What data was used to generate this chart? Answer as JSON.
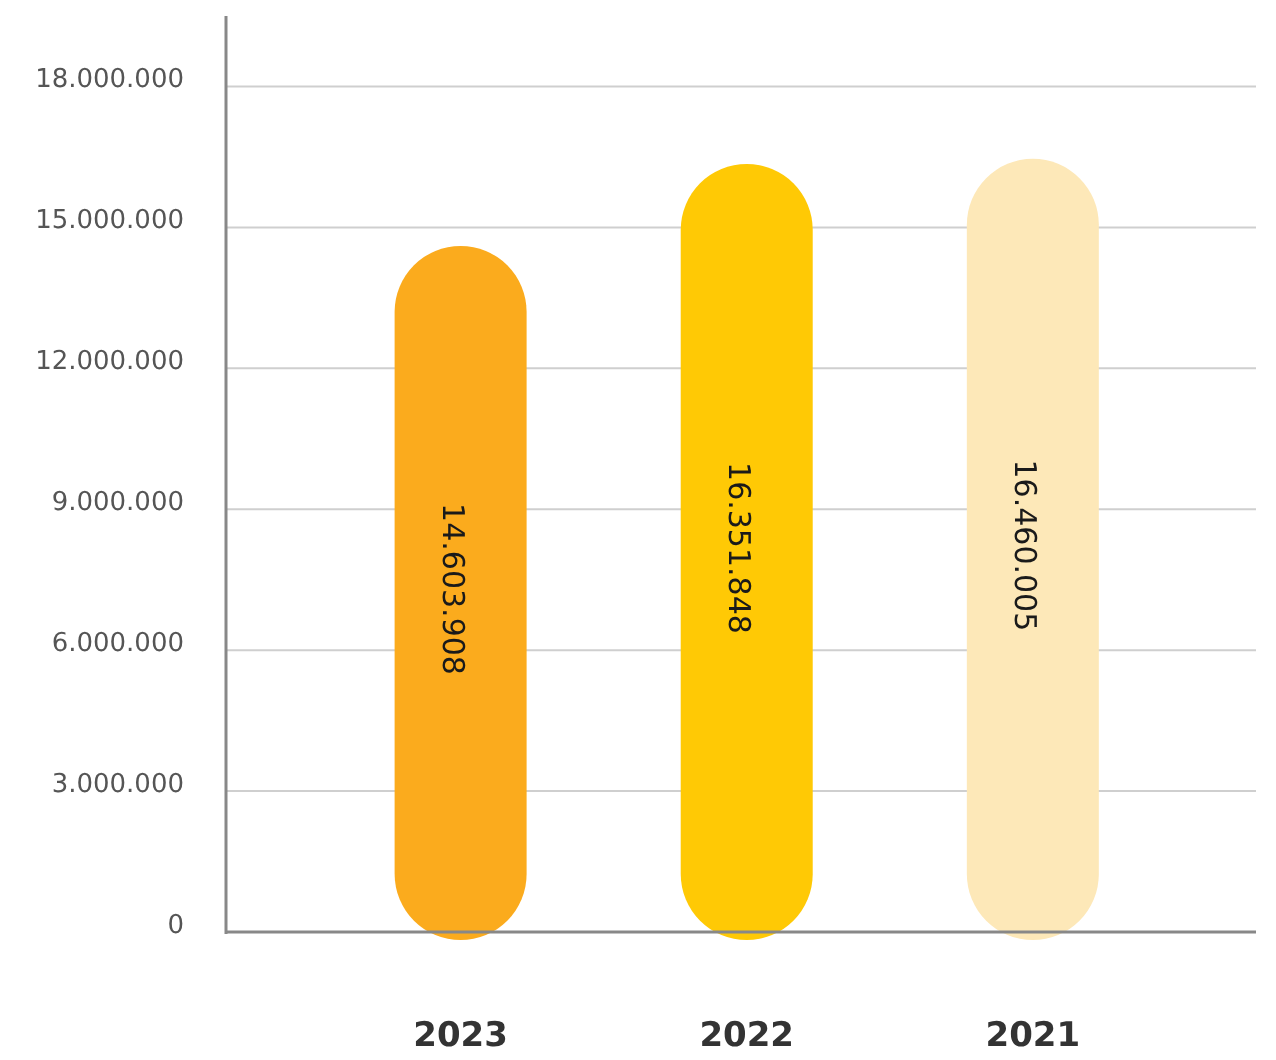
{
  "chart_data": {
    "type": "bar",
    "categories": [
      "2023",
      "2022",
      "2021"
    ],
    "values": [
      14603908,
      16351848,
      16460005
    ],
    "colors": [
      "#fbab1d",
      "#ffc905",
      "#fde8b8"
    ],
    "value_labels": [
      "14.603.908",
      "16.351.848",
      "16.460.005"
    ],
    "ylim": [
      0,
      19500000
    ],
    "yticks": [
      {
        "value": 0,
        "label": "0"
      },
      {
        "value": 3000000,
        "label": "3.000.000"
      },
      {
        "value": 6000000,
        "label": "6.000.000"
      },
      {
        "value": 9000000,
        "label": "9.000.000"
      },
      {
        "value": 12000000,
        "label": "12.000.000"
      },
      {
        "value": 15000000,
        "label": "15.000.000"
      },
      {
        "value": 18000000,
        "label": "18.000.000"
      }
    ],
    "grid": "y"
  }
}
